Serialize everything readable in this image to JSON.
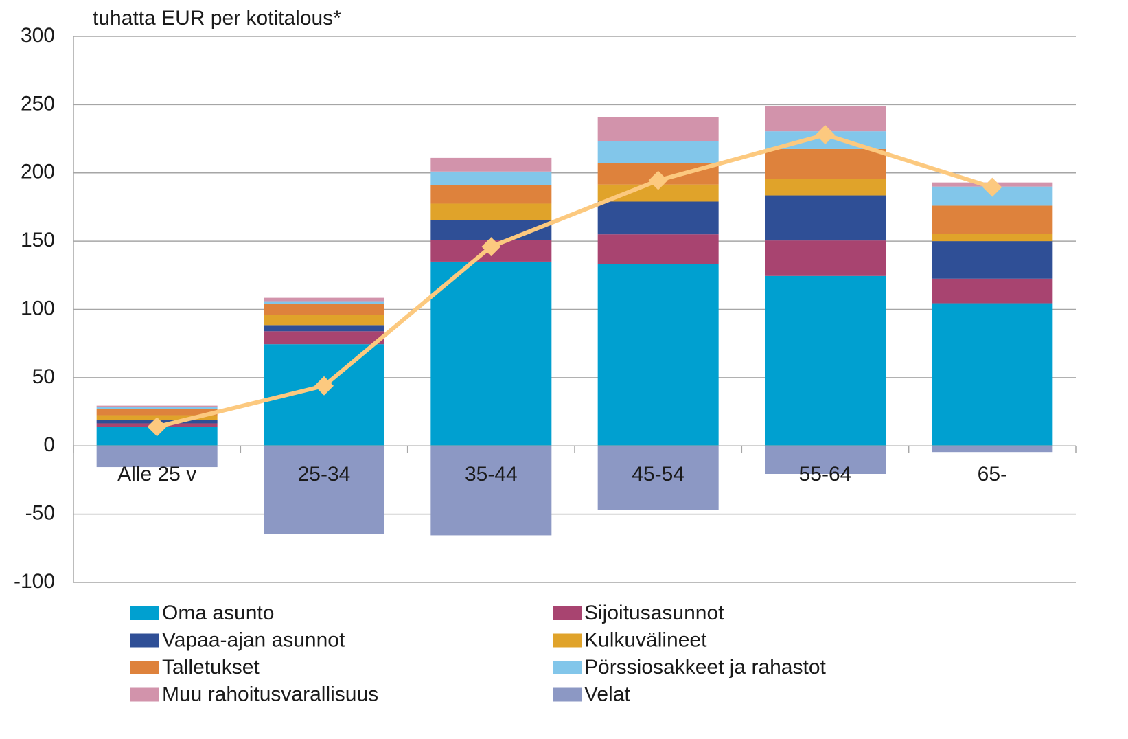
{
  "chart_data": {
    "type": "bar",
    "stacked": true,
    "title": "tuhatta EUR per kotitalous*",
    "categories": [
      "Alle 25 v",
      "25-34",
      "35-44",
      "45-54",
      "55-64",
      "65-"
    ],
    "series": [
      {
        "name": "Oma asunto",
        "color": "#00a0d0",
        "values": [
          14,
          74.5,
          135,
          133,
          124.5,
          104.5
        ]
      },
      {
        "name": "Sijoitusasunnot",
        "color": "#a84470",
        "values": [
          2.5,
          9.5,
          16,
          22,
          26,
          18
        ]
      },
      {
        "name": "Vapaa-ajan asunnot",
        "color": "#2f4f96",
        "values": [
          2.5,
          4.5,
          14.5,
          24,
          33,
          27.5
        ]
      },
      {
        "name": "Kulkuvälineet",
        "color": "#e0a32a",
        "values": [
          3.5,
          7.5,
          12,
          12.5,
          12,
          5.5
        ]
      },
      {
        "name": "Talletukset",
        "color": "#de823c",
        "values": [
          4.5,
          8,
          13.5,
          15.5,
          22,
          20.5
        ]
      },
      {
        "name": "Pörssiosakkeet ja rahastot",
        "color": "#82c6ea",
        "values": [
          1.5,
          2,
          10,
          16.5,
          13,
          14
        ]
      },
      {
        "name": "Muu rahoitusvarallisuus",
        "color": "#d293ab",
        "values": [
          1,
          2.5,
          10,
          17.5,
          18.5,
          3
        ]
      },
      {
        "name": "Velat",
        "color": "#8c98c4",
        "values": [
          -15.5,
          -64.5,
          -65.5,
          -47,
          -20.5,
          -4.5
        ]
      }
    ],
    "line": {
      "type": "line",
      "color": "#fcc97f",
      "values": [
        14,
        44,
        146,
        194.5,
        228,
        189.5
      ]
    },
    "ylim": [
      -100,
      300
    ],
    "yticks": [
      -100,
      -50,
      0,
      50,
      100,
      150,
      200,
      250,
      300
    ],
    "grid": true
  }
}
